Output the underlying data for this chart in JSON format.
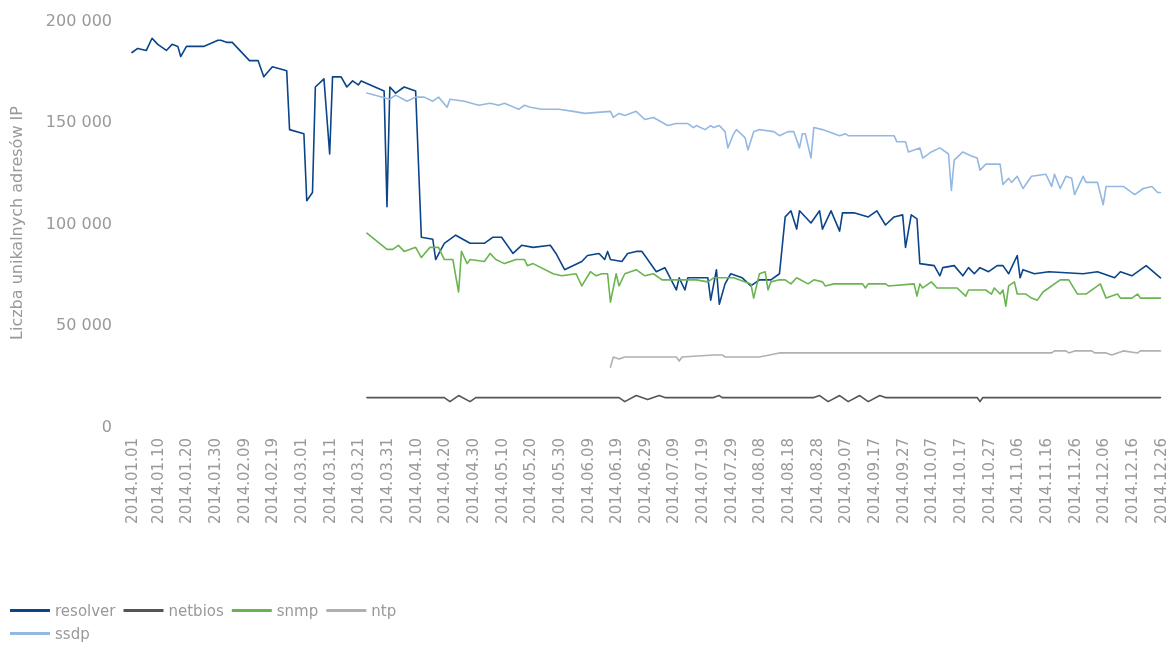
{
  "chart_data": {
    "type": "line",
    "ylabel": "Liczba unikalnych adresów IP",
    "xlim": [
      "2014-01-01",
      "2014-12-26"
    ],
    "xticks": [
      {
        "value": "2014-01-01",
        "label": "2014.01.01"
      },
      {
        "value": "2014-01-10",
        "label": "2014.01.10"
      },
      {
        "value": "2014-01-20",
        "label": "2014.01.20"
      },
      {
        "value": "2014-01-30",
        "label": "2014.01.30"
      },
      {
        "value": "2014-02-09",
        "label": "2014.02.09"
      },
      {
        "value": "2014-02-19",
        "label": "2014.02.19"
      },
      {
        "value": "2014-03-01",
        "label": "2014.03.01"
      },
      {
        "value": "2014-03-11",
        "label": "2014.03.11"
      },
      {
        "value": "2014-03-21",
        "label": "2014.03.21"
      },
      {
        "value": "2014-03-31",
        "label": "2014.03.31"
      },
      {
        "value": "2014-04-10",
        "label": "2014.04.10"
      },
      {
        "value": "2014-04-20",
        "label": "2014.04.20"
      },
      {
        "value": "2014-04-30",
        "label": "2014.04.30"
      },
      {
        "value": "2014-05-10",
        "label": "2014.05.10"
      },
      {
        "value": "2014-05-20",
        "label": "2014.05.20"
      },
      {
        "value": "2014-05-30",
        "label": "2014.05.30"
      },
      {
        "value": "2014-06-09",
        "label": "2014.06.09"
      },
      {
        "value": "2014-06-19",
        "label": "2014.06.19"
      },
      {
        "value": "2014-06-29",
        "label": "2014.06.29"
      },
      {
        "value": "2014-07-09",
        "label": "2014.07.09"
      },
      {
        "value": "2014-07-19",
        "label": "2014.07.19"
      },
      {
        "value": "2014-07-29",
        "label": "2014.07.29"
      },
      {
        "value": "2014-08-08",
        "label": "2014.08.08"
      },
      {
        "value": "2014-08-18",
        "label": "2014.08.18"
      },
      {
        "value": "2014-08-28",
        "label": "2014.08.28"
      },
      {
        "value": "2014-09-07",
        "label": "2014.09.07"
      },
      {
        "value": "2014-09-17",
        "label": "2014.09.17"
      },
      {
        "value": "2014-09-27",
        "label": "2014.09.27"
      },
      {
        "value": "2014-10-07",
        "label": "2014.10.07"
      },
      {
        "value": "2014-10-17",
        "label": "2014.10.17"
      },
      {
        "value": "2014-10-27",
        "label": "2014.10.27"
      },
      {
        "value": "2014-11-06",
        "label": "2014.11.06"
      },
      {
        "value": "2014-11-16",
        "label": "2014.11.16"
      },
      {
        "value": "2014-11-26",
        "label": "2014.11.26"
      },
      {
        "value": "2014-12-06",
        "label": "2014.12.06"
      },
      {
        "value": "2014-12-16",
        "label": "2014.12.16"
      },
      {
        "value": "2014-12-26",
        "label": "2014.12.26"
      }
    ],
    "ylim": [
      0,
      200000
    ],
    "yticks": [
      {
        "value": 0,
        "label": "0"
      },
      {
        "value": 50000,
        "label": "50 000"
      },
      {
        "value": 100000,
        "label": "100 000"
      },
      {
        "value": 150000,
        "label": "150 000"
      },
      {
        "value": 200000,
        "label": "200 000"
      }
    ],
    "grid": false,
    "legend": "bottom left",
    "marker": "none",
    "line_style": "solid",
    "series": [
      {
        "name": "resolver",
        "color": "#0b4488",
        "x": [
          "2014-01-01",
          "2014-01-03",
          "2014-01-06",
          "2014-01-08",
          "2014-01-10",
          "2014-01-13",
          "2014-01-15",
          "2014-01-17",
          "2014-01-18",
          "2014-01-20",
          "2014-01-26",
          "2014-01-31",
          "2014-02-01",
          "2014-02-03",
          "2014-02-05",
          "2014-02-11",
          "2014-02-14",
          "2014-02-16",
          "2014-02-19",
          "2014-02-24",
          "2014-02-25",
          "2014-03-02",
          "2014-03-03",
          "2014-03-05",
          "2014-03-06",
          "2014-03-09",
          "2014-03-11",
          "2014-03-12",
          "2014-03-15",
          "2014-03-17",
          "2014-03-19",
          "2014-03-21",
          "2014-03-22",
          "2014-03-30",
          "2014-03-31",
          "2014-04-01",
          "2014-04-03",
          "2014-04-06",
          "2014-04-10",
          "2014-04-12",
          "2014-04-16",
          "2014-04-17",
          "2014-04-20",
          "2014-04-24",
          "2014-04-29",
          "2014-05-04",
          "2014-05-07",
          "2014-05-10",
          "2014-05-14",
          "2014-05-17",
          "2014-05-21",
          "2014-05-27",
          "2014-05-29",
          "2014-06-01",
          "2014-06-07",
          "2014-06-09",
          "2014-06-13",
          "2014-06-15",
          "2014-06-16",
          "2014-06-17",
          "2014-06-21",
          "2014-06-23",
          "2014-06-26",
          "2014-06-28",
          "2014-07-03",
          "2014-07-06",
          "2014-07-10",
          "2014-07-11",
          "2014-07-13",
          "2014-07-14",
          "2014-07-21",
          "2014-07-22",
          "2014-07-24",
          "2014-07-25",
          "2014-07-27",
          "2014-07-29",
          "2014-08-02",
          "2014-08-05",
          "2014-08-08",
          "2014-08-12",
          "2014-08-15",
          "2014-08-17",
          "2014-08-19",
          "2014-08-21",
          "2014-08-22",
          "2014-08-26",
          "2014-08-29",
          "2014-08-30",
          "2014-09-02",
          "2014-09-05",
          "2014-09-06",
          "2014-09-10",
          "2014-09-15",
          "2014-09-18",
          "2014-09-21",
          "2014-09-24",
          "2014-09-27",
          "2014-09-28",
          "2014-09-30",
          "2014-10-02",
          "2014-10-03",
          "2014-10-08",
          "2014-10-10",
          "2014-10-11",
          "2014-10-15",
          "2014-10-18",
          "2014-10-20",
          "2014-10-22",
          "2014-10-24",
          "2014-10-27",
          "2014-10-30",
          "2014-11-01",
          "2014-11-03",
          "2014-11-04",
          "2014-11-06",
          "2014-11-07",
          "2014-11-08",
          "2014-11-12",
          "2014-11-17",
          "2014-11-29",
          "2014-12-04",
          "2014-12-06",
          "2014-12-10",
          "2014-12-12",
          "2014-12-16",
          "2014-12-21",
          "2014-12-26"
        ],
        "values": [
          184000,
          186000,
          185000,
          191000,
          188000,
          185000,
          188000,
          187000,
          182000,
          187000,
          187000,
          190000,
          190000,
          189000,
          189000,
          180000,
          180000,
          172000,
          177000,
          175000,
          146000,
          144000,
          111000,
          115000,
          167000,
          171000,
          134000,
          172000,
          172000,
          167000,
          170000,
          168000,
          170000,
          165000,
          108000,
          167000,
          164000,
          167000,
          165000,
          93000,
          92000,
          82000,
          90000,
          94000,
          90000,
          90000,
          93000,
          93000,
          85000,
          89000,
          88000,
          89000,
          85000,
          77000,
          81000,
          84000,
          85000,
          82000,
          86000,
          82000,
          81000,
          85000,
          86000,
          86000,
          76000,
          78000,
          67000,
          73000,
          67000,
          73000,
          73000,
          62000,
          77000,
          60000,
          70000,
          75000,
          73000,
          69000,
          72000,
          72000,
          75000,
          103000,
          106000,
          97000,
          106000,
          100000,
          106000,
          97000,
          106000,
          96000,
          105000,
          105000,
          103000,
          106000,
          99000,
          103000,
          104000,
          88000,
          104000,
          102000,
          80000,
          79000,
          74000,
          78000,
          79000,
          74000,
          78000,
          75000,
          78000,
          76000,
          79000,
          79000,
          75000,
          78000,
          84000,
          73000,
          77000,
          75000,
          76000,
          75000,
          76000,
          75000,
          73000,
          76000,
          74000,
          79000,
          73000
        ]
      },
      {
        "name": "netbios",
        "color": "#555555",
        "x": [
          "2014-03-24",
          "2014-04-20",
          "2014-04-22",
          "2014-04-25",
          "2014-04-29",
          "2014-05-01",
          "2014-06-20",
          "2014-06-22",
          "2014-06-26",
          "2014-06-30",
          "2014-07-04",
          "2014-07-06",
          "2014-07-23",
          "2014-07-25",
          "2014-07-26",
          "2014-08-27",
          "2014-08-29",
          "2014-09-01",
          "2014-09-05",
          "2014-09-08",
          "2014-09-12",
          "2014-09-15",
          "2014-09-19",
          "2014-09-21",
          "2014-10-23",
          "2014-10-24",
          "2014-10-25",
          "2014-12-26"
        ],
        "values": [
          14000,
          14000,
          12000,
          15000,
          12000,
          14000,
          14000,
          12000,
          15000,
          13000,
          15000,
          14000,
          14000,
          15000,
          14000,
          14000,
          15000,
          12000,
          15000,
          12000,
          15000,
          12000,
          15000,
          14000,
          14000,
          12000,
          14000,
          14000
        ]
      },
      {
        "name": "snmp",
        "color": "#6ab450",
        "x": [
          "2014-03-24",
          "2014-03-31",
          "2014-04-02",
          "2014-04-04",
          "2014-04-06",
          "2014-04-10",
          "2014-04-12",
          "2014-04-15",
          "2014-04-18",
          "2014-04-20",
          "2014-04-23",
          "2014-04-25",
          "2014-04-26",
          "2014-04-28",
          "2014-04-29",
          "2014-05-04",
          "2014-05-06",
          "2014-05-08",
          "2014-05-11",
          "2014-05-15",
          "2014-05-18",
          "2014-05-19",
          "2014-05-21",
          "2014-05-28",
          "2014-05-31",
          "2014-06-05",
          "2014-06-07",
          "2014-06-10",
          "2014-06-12",
          "2014-06-14",
          "2014-06-16",
          "2014-06-17",
          "2014-06-19",
          "2014-06-20",
          "2014-06-22",
          "2014-06-24",
          "2014-06-26",
          "2014-06-29",
          "2014-07-02",
          "2014-07-05",
          "2014-07-10",
          "2014-07-17",
          "2014-07-21",
          "2014-07-23",
          "2014-07-27",
          "2014-07-30",
          "2014-08-05",
          "2014-08-06",
          "2014-08-08",
          "2014-08-10",
          "2014-08-11",
          "2014-08-12",
          "2014-08-15",
          "2014-08-17",
          "2014-08-19",
          "2014-08-21",
          "2014-08-25",
          "2014-08-27",
          "2014-08-30",
          "2014-08-31",
          "2014-09-03",
          "2014-09-13",
          "2014-09-14",
          "2014-09-15",
          "2014-09-21",
          "2014-09-22",
          "2014-10-01",
          "2014-10-02",
          "2014-10-03",
          "2014-10-04",
          "2014-10-07",
          "2014-10-09",
          "2014-10-16",
          "2014-10-19",
          "2014-10-20",
          "2014-10-26",
          "2014-10-28",
          "2014-10-29",
          "2014-10-31",
          "2014-11-01",
          "2014-11-02",
          "2014-11-03",
          "2014-11-05",
          "2014-11-06",
          "2014-11-09",
          "2014-11-11",
          "2014-11-13",
          "2014-11-15",
          "2014-11-21",
          "2014-11-24",
          "2014-11-27",
          "2014-11-30",
          "2014-12-05",
          "2014-12-07",
          "2014-12-11",
          "2014-12-12",
          "2014-12-16",
          "2014-12-18",
          "2014-12-19",
          "2014-12-23",
          "2014-12-26"
        ],
        "values": [
          95000,
          87000,
          87000,
          89000,
          86000,
          88000,
          83000,
          88000,
          88000,
          82000,
          82000,
          66000,
          86000,
          80000,
          82000,
          81000,
          85000,
          82000,
          80000,
          82000,
          82000,
          79000,
          80000,
          75000,
          74000,
          75000,
          69000,
          76000,
          74000,
          75000,
          75000,
          61000,
          75000,
          69000,
          75000,
          76000,
          77000,
          74000,
          75000,
          72000,
          72000,
          72000,
          71000,
          73000,
          73000,
          73000,
          70000,
          63000,
          75000,
          76000,
          67000,
          71000,
          72000,
          72000,
          70000,
          73000,
          70000,
          72000,
          71000,
          69000,
          70000,
          70000,
          68000,
          70000,
          70000,
          69000,
          70000,
          64000,
          70000,
          68000,
          71000,
          68000,
          68000,
          64000,
          67000,
          67000,
          65000,
          68000,
          65000,
          67000,
          59000,
          69000,
          71000,
          65000,
          65000,
          63000,
          62000,
          66000,
          72000,
          72000,
          65000,
          65000,
          70000,
          63000,
          65000,
          63000,
          63000,
          65000,
          63000,
          63000,
          63000
        ]
      },
      {
        "name": "ntp",
        "color": "#b0b0b0",
        "x": [
          "2014-06-17",
          "2014-06-18",
          "2014-06-20",
          "2014-06-22",
          "2014-07-10",
          "2014-07-11",
          "2014-07-12",
          "2014-07-23",
          "2014-07-26",
          "2014-07-27",
          "2014-08-08",
          "2014-08-15",
          "2014-11-18",
          "2014-11-19",
          "2014-11-23",
          "2014-11-24",
          "2014-11-26",
          "2014-12-02",
          "2014-12-03",
          "2014-12-07",
          "2014-12-09",
          "2014-12-13",
          "2014-12-18",
          "2014-12-19",
          "2014-12-26"
        ],
        "values": [
          29000,
          34000,
          33000,
          34000,
          34000,
          32000,
          34000,
          35000,
          35000,
          34000,
          34000,
          36000,
          36000,
          37000,
          37000,
          36000,
          37000,
          37000,
          36000,
          36000,
          35000,
          37000,
          36000,
          37000,
          37000
        ]
      },
      {
        "name": "ssdp",
        "color": "#94b8e2",
        "x": [
          "2014-03-24",
          "2014-04-01",
          "2014-04-03",
          "2014-04-07",
          "2014-04-10",
          "2014-04-13",
          "2014-04-16",
          "2014-04-18",
          "2014-04-21",
          "2014-04-22",
          "2014-04-27",
          "2014-05-02",
          "2014-05-06",
          "2014-05-09",
          "2014-05-11",
          "2014-05-16",
          "2014-05-18",
          "2014-05-20",
          "2014-05-24",
          "2014-05-30",
          "2014-06-04",
          "2014-06-08",
          "2014-06-17",
          "2014-06-18",
          "2014-06-20",
          "2014-06-22",
          "2014-06-26",
          "2014-06-29",
          "2014-07-02",
          "2014-07-07",
          "2014-07-10",
          "2014-07-14",
          "2014-07-16",
          "2014-07-17",
          "2014-07-20",
          "2014-07-22",
          "2014-07-23",
          "2014-07-25",
          "2014-07-27",
          "2014-07-28",
          "2014-07-30",
          "2014-07-31",
          "2014-08-03",
          "2014-08-04",
          "2014-08-06",
          "2014-08-08",
          "2014-08-13",
          "2014-08-15",
          "2014-08-18",
          "2014-08-20",
          "2014-08-22",
          "2014-08-23",
          "2014-08-24",
          "2014-08-26",
          "2014-08-27",
          "2014-08-30",
          "2014-09-05",
          "2014-09-07",
          "2014-09-08",
          "2014-09-24",
          "2014-09-25",
          "2014-09-28",
          "2014-09-29",
          "2014-10-03",
          "2014-10-04",
          "2014-10-07",
          "2014-10-10",
          "2014-10-13",
          "2014-10-14",
          "2014-10-15",
          "2014-10-18",
          "2014-10-21",
          "2014-10-23",
          "2014-10-24",
          "2014-10-26",
          "2014-10-31",
          "2014-11-01",
          "2014-11-03",
          "2014-11-04",
          "2014-11-06",
          "2014-11-08",
          "2014-11-11",
          "2014-11-16",
          "2014-11-18",
          "2014-11-19",
          "2014-11-21",
          "2014-11-23",
          "2014-11-25",
          "2014-11-26",
          "2014-11-28",
          "2014-11-29",
          "2014-11-30",
          "2014-12-04",
          "2014-12-06",
          "2014-12-07",
          "2014-12-13",
          "2014-12-17",
          "2014-12-20",
          "2014-12-23",
          "2014-12-25",
          "2014-12-26"
        ],
        "values": [
          164000,
          161000,
          163000,
          160000,
          162000,
          162000,
          160000,
          162000,
          157000,
          161000,
          160000,
          158000,
          159000,
          158000,
          159000,
          156000,
          158000,
          157000,
          156000,
          156000,
          155000,
          154000,
          155000,
          152000,
          154000,
          153000,
          155000,
          151000,
          152000,
          148000,
          149000,
          149000,
          147000,
          148000,
          146000,
          148000,
          147000,
          148000,
          145000,
          137000,
          144000,
          146000,
          142000,
          136000,
          145000,
          146000,
          145000,
          143000,
          145000,
          145000,
          137000,
          144000,
          144000,
          132000,
          147000,
          146000,
          143000,
          144000,
          143000,
          143000,
          140000,
          140000,
          135000,
          137000,
          132000,
          135000,
          137000,
          134000,
          116000,
          131000,
          135000,
          133000,
          132000,
          126000,
          129000,
          129000,
          119000,
          122000,
          120000,
          123000,
          117000,
          123000,
          124000,
          118000,
          124000,
          117000,
          123000,
          122000,
          114000,
          120000,
          123000,
          120000,
          120000,
          109000,
          118000,
          118000,
          114000,
          117000,
          118000,
          115000,
          115000
        ]
      }
    ]
  }
}
